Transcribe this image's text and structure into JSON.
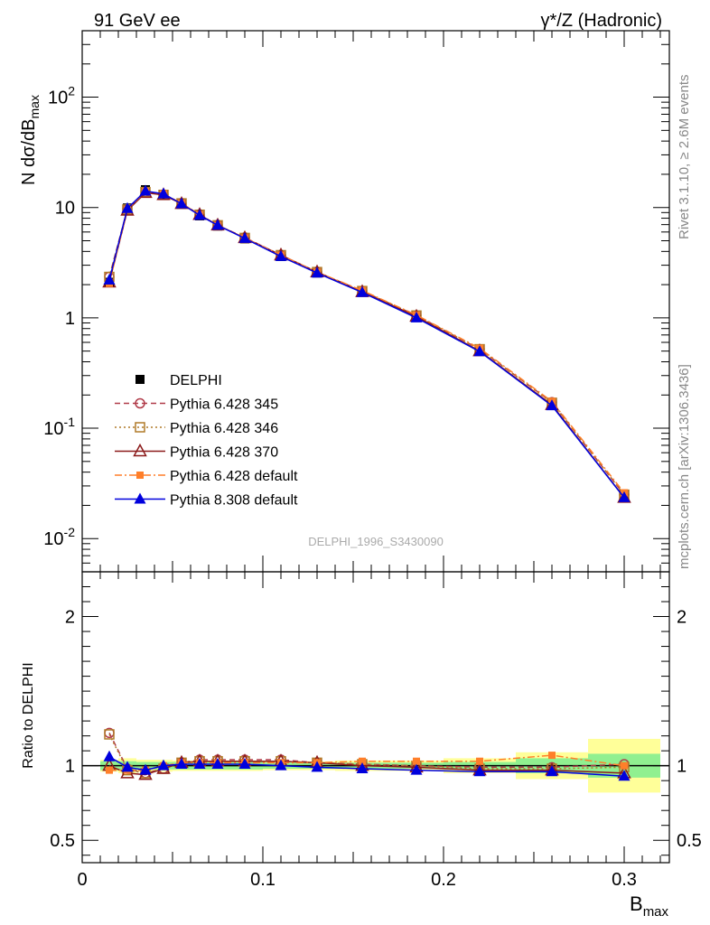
{
  "header": {
    "left": "91 GeV ee",
    "right": "γ*/Z (Hadronic)"
  },
  "side_labels": {
    "rivet": "Rivet 3.1.10, ≥ 2.6M events",
    "mcplots": "mcplots.cern.ch [arXiv:1306.3436]"
  },
  "analysis_id": "DELPHI_1996_S3430090",
  "legend": [
    "DELPHI",
    "Pythia 6.428 345",
    "Pythia 6.428 346",
    "Pythia 6.428 370",
    "Pythia 6.428 default",
    "Pythia 8.308 default"
  ],
  "colors": {
    "data": "#000000",
    "p345": "#b03a48",
    "p346": "#b07a28",
    "p370": "#8b1a1a",
    "p6def": "#ff7f2a",
    "p8def": "#0000dd",
    "band_inner": "#90f090",
    "band_outer": "#ffff99"
  },
  "chart_data": [
    {
      "type": "line",
      "title": "",
      "xlabel": "B_max",
      "ylabel": "N dσ/dB_max",
      "yscale": "log",
      "xlim": [
        0,
        0.325
      ],
      "ylim": [
        0.005,
        400
      ],
      "x_ticks": [
        "0",
        "0.1",
        "0.2",
        "0.3"
      ],
      "y_ticks": [
        "10^-2",
        "10^-1",
        "1",
        "10",
        "10^2"
      ],
      "x": [
        0.015,
        0.025,
        0.035,
        0.045,
        0.055,
        0.065,
        0.075,
        0.09,
        0.11,
        0.13,
        0.155,
        0.185,
        0.22,
        0.26,
        0.3
      ],
      "series": [
        {
          "name": "DELPHI",
          "key": "data",
          "marker": "filled-square",
          "values": [
            2.1,
            9.9,
            14.5,
            13.2,
            10.7,
            8.4,
            6.8,
            5.2,
            3.6,
            2.55,
            1.72,
            1.03,
            0.51,
            0.165,
            0.025
          ]
        },
        {
          "name": "Pythia 6.428 345",
          "key": "p345",
          "marker": "open-circle",
          "dash": "dashed",
          "values": [
            2.35,
            9.7,
            13.8,
            13.0,
            10.9,
            8.6,
            6.9,
            5.35,
            3.7,
            2.6,
            1.75,
            1.05,
            0.52,
            0.172,
            0.025
          ]
        },
        {
          "name": "Pythia 6.428 346",
          "key": "p346",
          "marker": "open-square",
          "dash": "dotted",
          "values": [
            2.35,
            9.6,
            13.8,
            13.0,
            10.9,
            8.6,
            6.9,
            5.3,
            3.7,
            2.6,
            1.75,
            1.05,
            0.52,
            0.17,
            0.025
          ]
        },
        {
          "name": "Pythia 6.428 370",
          "key": "p370",
          "marker": "open-triangle",
          "dash": "solid",
          "values": [
            2.1,
            9.4,
            13.6,
            13.0,
            10.8,
            8.6,
            6.9,
            5.3,
            3.7,
            2.6,
            1.72,
            1.03,
            0.5,
            0.163,
            0.0235
          ]
        },
        {
          "name": "Pythia 6.428 default",
          "key": "p6def",
          "marker": "filled-small-square",
          "dash": "dashdot",
          "values": [
            2.05,
            9.6,
            14.0,
            13.3,
            10.9,
            8.6,
            6.9,
            5.3,
            3.7,
            2.6,
            1.77,
            1.06,
            0.53,
            0.175,
            0.026
          ]
        },
        {
          "name": "Pythia 8.308 default",
          "key": "p8def",
          "marker": "filled-triangle",
          "dash": "solid",
          "values": [
            2.2,
            9.8,
            14.1,
            13.3,
            10.8,
            8.5,
            6.9,
            5.25,
            3.6,
            2.55,
            1.7,
            1.0,
            0.495,
            0.16,
            0.0235
          ]
        }
      ]
    },
    {
      "type": "line",
      "title": "",
      "xlabel": "B_max",
      "ylabel": "Ratio to DELPHI",
      "xlim": [
        0,
        0.325
      ],
      "ylim": [
        0.35,
        2.3
      ],
      "y_ticks": [
        "0.5",
        "1",
        "2"
      ],
      "x": [
        0.015,
        0.025,
        0.035,
        0.045,
        0.055,
        0.065,
        0.075,
        0.09,
        0.11,
        0.13,
        0.155,
        0.185,
        0.22,
        0.26,
        0.3
      ],
      "bands": {
        "x_edges": [
          0.01,
          0.02,
          0.03,
          0.04,
          0.05,
          0.06,
          0.07,
          0.08,
          0.1,
          0.12,
          0.14,
          0.17,
          0.2,
          0.24,
          0.28,
          0.32
        ],
        "inner_halfwidth": [
          0.03,
          0.03,
          0.025,
          0.025,
          0.025,
          0.025,
          0.025,
          0.025,
          0.02,
          0.02,
          0.02,
          0.02,
          0.025,
          0.05,
          0.08
        ],
        "outer_halfwidth": [
          0.04,
          0.05,
          0.04,
          0.04,
          0.035,
          0.035,
          0.035,
          0.035,
          0.03,
          0.03,
          0.035,
          0.035,
          0.05,
          0.09,
          0.18
        ]
      },
      "series": [
        {
          "name": "Pythia 6.428 345",
          "key": "p345",
          "values": [
            1.22,
            0.98,
            0.95,
            0.98,
            1.02,
            1.04,
            1.04,
            1.04,
            1.04,
            1.02,
            1.01,
            1.0,
            0.99,
            0.99,
            1.01
          ]
        },
        {
          "name": "Pythia 6.428 346",
          "key": "p346",
          "values": [
            1.21,
            0.97,
            0.95,
            0.98,
            1.02,
            1.03,
            1.03,
            1.03,
            1.03,
            1.02,
            1.01,
            1.0,
            0.98,
            0.98,
            0.99
          ]
        },
        {
          "name": "Pythia 6.428 370",
          "key": "p370",
          "values": [
            1.0,
            0.95,
            0.94,
            0.98,
            1.02,
            1.03,
            1.03,
            1.03,
            1.03,
            1.02,
            1.0,
            0.99,
            0.97,
            0.97,
            0.95
          ]
        },
        {
          "name": "Pythia 6.428 default",
          "key": "p6def",
          "values": [
            0.97,
            0.97,
            0.97,
            1.0,
            1.02,
            1.02,
            1.02,
            1.02,
            1.02,
            1.02,
            1.03,
            1.03,
            1.03,
            1.07,
            1.0
          ]
        },
        {
          "name": "Pythia 8.308 default",
          "key": "p8def",
          "values": [
            1.06,
            0.99,
            0.97,
            1.0,
            1.01,
            1.01,
            1.01,
            1.01,
            1.0,
            0.99,
            0.98,
            0.97,
            0.96,
            0.96,
            0.93
          ]
        }
      ]
    }
  ]
}
